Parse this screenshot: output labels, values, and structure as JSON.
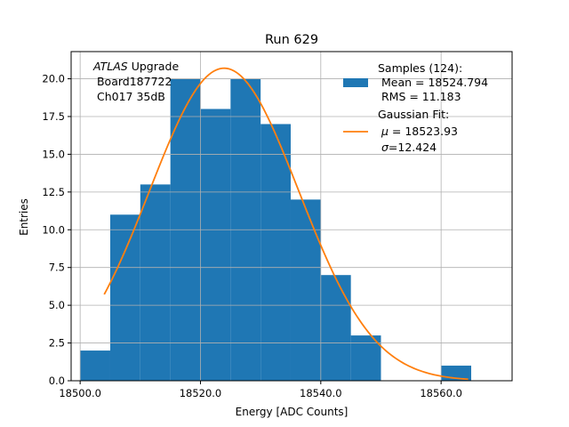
{
  "chart_data": {
    "type": "bar",
    "title": "Run 629",
    "xlabel": "Energy [ADC Counts]",
    "ylabel": "Entries",
    "xlim": [
      18498.5,
      18571.8
    ],
    "ylim": [
      0,
      21.8
    ],
    "grid": true,
    "bin_width": 5,
    "x_ticks": [
      18500,
      18520,
      18540,
      18560
    ],
    "x_tick_labels": [
      "18500.0",
      "18520.0",
      "18540.0",
      "18560.0"
    ],
    "y_ticks": [
      0,
      2.5,
      5,
      7.5,
      10,
      12.5,
      15,
      17.5,
      20
    ],
    "y_tick_labels": [
      "0.0",
      "2.5",
      "5.0",
      "7.5",
      "10.0",
      "12.5",
      "15.0",
      "17.5",
      "20.0"
    ],
    "histogram": {
      "bin_edges": [
        18500,
        18505,
        18510,
        18515,
        18520,
        18525,
        18530,
        18535,
        18540,
        18545,
        18550,
        18555,
        18560,
        18565
      ],
      "counts": [
        2,
        11,
        13,
        20,
        18,
        20,
        17,
        12,
        7,
        3,
        0,
        0,
        1
      ],
      "color": "#1f77b4"
    },
    "fit": {
      "mu": 18523.93,
      "sigma": 12.424,
      "amplitude": 20.7,
      "x_range": [
        18504,
        18564.5
      ],
      "color": "#ff7f0e"
    },
    "annotation": {
      "atlas": "ATLAS",
      "upgrade": " Upgrade",
      "board": " Board187722",
      "channel": " Ch017 35dB"
    },
    "legend": {
      "placement": "top-right",
      "hist_title": "Samples (124):",
      "hist_mean": " Mean = 18524.794",
      "hist_rms": " RMS = 11.183",
      "fit_title": "Gaussian Fit:",
      "fit_mu_symbol": "μ",
      "fit_mu_value": " = 18523.93",
      "fit_sigma_symbol": "σ",
      "fit_sigma_value": "=12.424"
    }
  }
}
